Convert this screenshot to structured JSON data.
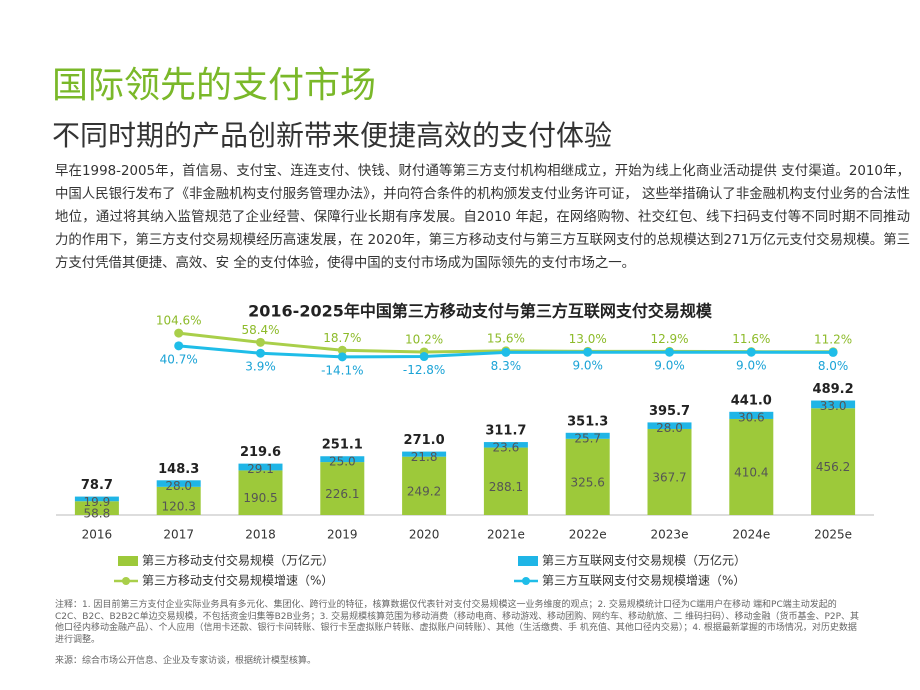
{
  "heading": "国际领先的支付市场",
  "subheading": "不同时期的产品创新带来便捷高效的支付体验",
  "body": "早在1998-2005年，首信易、支付宝、连连支付、快钱、财付通等第三方支付机构相继成立，开始为线上化商业活动提供 支付渠道。2010年，中国人民银行发布了《非金融机构支付服务管理办法》，并向符合条件的机构颁发支付业务许可证， 这些举措确认了非金融机构支付业务的合法性地位，通过将其纳入监管规范了企业经营、保障行业长期有序发展。自2010 年起，在网络购物、社交红包、线下扫码支付等不同时期不同推动力的作用下，第三方支付交易规模经历高速发展，在 2020年，第三方移动支付与第三方互联网支付的总规模达到271万亿元支付交易规模。第三方支付凭借其便捷、高效、安 全的支付体验，使得中国的支付市场成为国际领先的支付市场之一。",
  "chart_data": {
    "type": "bar",
    "title": "2016-2025年中国第三方移动支付与第三方互联网支付交易规模",
    "categories": [
      "2016",
      "2017",
      "2018",
      "2019",
      "2020",
      "2021e",
      "2022e",
      "2023e",
      "2024e",
      "2025e"
    ],
    "stacked": true,
    "ylim": [
      0,
      500
    ],
    "y2lim": [
      -40,
      120
    ],
    "series": [
      {
        "name": "第三方移动支付交易规模（万亿元）",
        "type": "bar",
        "color": "#9dc93a",
        "values": [
          58.8,
          120.3,
          190.5,
          226.1,
          249.2,
          288.1,
          325.6,
          367.7,
          410.4,
          456.2
        ],
        "value_labels": [
          "58.8",
          "120.3",
          "190.5",
          "226.1",
          "249.2",
          "288.1",
          "325.6",
          "367.7",
          "410.4",
          "456.2"
        ]
      },
      {
        "name": "第三方互联网支付交易规模（万亿元）",
        "type": "bar",
        "color": "#1fb5e6",
        "values": [
          19.9,
          28.0,
          29.1,
          25.0,
          21.8,
          23.6,
          25.7,
          28.0,
          30.6,
          33.0
        ],
        "value_labels": [
          "19.9",
          "28.0",
          "29.1",
          "25.0",
          "21.8",
          "23.6",
          "25.7",
          "28.0",
          "30.6",
          "33.0"
        ]
      },
      {
        "name": "第三方移动支付交易规模增速（%）",
        "type": "line",
        "axis": "y2",
        "color": "#a9cf4a",
        "values": [
          null,
          104.6,
          58.4,
          18.7,
          10.2,
          15.6,
          13.0,
          12.9,
          11.6,
          11.2
        ],
        "value_labels": [
          null,
          "104.6%",
          "58.4%",
          "18.7%",
          "10.2%",
          "15.6%",
          "13.0%",
          "12.9%",
          "11.6%",
          "11.2%"
        ]
      },
      {
        "name": "第三方互联网支付交易规模增速（%）",
        "type": "line",
        "axis": "y2",
        "color": "#1fbde8",
        "values": [
          null,
          40.7,
          3.9,
          -14.1,
          -12.8,
          8.3,
          9.0,
          9.0,
          9.0,
          8.0
        ],
        "value_labels": [
          null,
          "40.7%",
          "3.9%",
          "-14.1%",
          "-12.8%",
          "8.3%",
          "9.0%",
          "9.0%",
          "9.0%",
          "8.0%"
        ]
      }
    ],
    "totals": {
      "values": [
        78.7,
        148.3,
        219.6,
        251.1,
        271.0,
        311.7,
        351.3,
        395.7,
        441.0,
        489.2
      ],
      "value_labels": [
        "78.7",
        "148.3",
        "219.6",
        "251.1",
        "271.0",
        "311.7",
        "351.3",
        "395.7",
        "441.0",
        "489.2"
      ]
    }
  },
  "notes": "注释：1. 因目前第三方支付企业实际业务具有多元化、集团化、跨行业的特征，核算数据仅代表针对支付交易规模这一业务维度的观点；2. 交易规模统计口径为C端用户在移动 端和PC端主动发起的C2C、B2C、B2B2C单边交易规模，不包括资金归集等B2B业务；3. 交易规模核算范围为移动消费（移动电商、移动游戏、移动团购、网约车、移动航旅、二 维码扫码）、移动金融（货币基金、P2P、其他口径内移动金融产品）、个人应用（信用卡还款、银行卡间转账、银行卡至虚拟账户转账、虚拟账户间转账）、其他（生活缴费、手 机充值、其他口径内交易）；4. 根据最新掌握的市场情况，对历史数据进行调整。",
  "source": "来源：综合市场公开信息、企业及专家访谈，根据统计模型核算。"
}
